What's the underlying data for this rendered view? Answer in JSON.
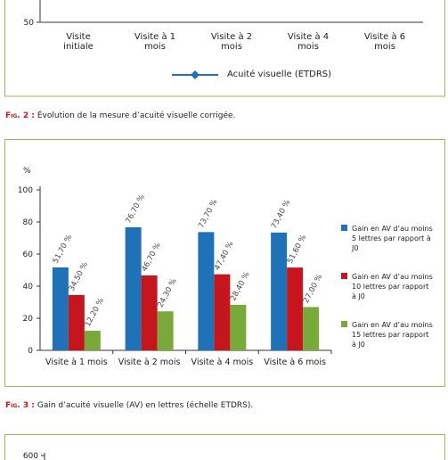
{
  "chart_data": [
    {
      "type": "line",
      "categories": [
        "Visite initiale",
        "Visite à 1 mois",
        "Visite à 2 mois",
        "Visite à 4 mois",
        "Visite à 6 mois"
      ],
      "yticks": [
        50
      ],
      "series": [
        {
          "name": "Acuité visuelle (ETDRS)",
          "color": "#1f72b8"
        }
      ]
    },
    {
      "type": "bar",
      "ylabel": "%",
      "categories": [
        "Visite à 1 mois",
        "Visite à 2 mois",
        "Visite à 4 mois",
        "Visite à 6 mois"
      ],
      "ylim": [
        0,
        100
      ],
      "yticks": [
        0,
        20,
        40,
        60,
        80,
        100
      ],
      "series": [
        {
          "name": "Gain en AV d’au moins 5 lettres par rapport à J0",
          "color": "#1f72b8",
          "values": [
            51.7,
            76.7,
            73.7,
            73.4
          ],
          "value_labels": [
            "51,70 %",
            "76,70 %",
            "73,70 %",
            "73,40 %"
          ]
        },
        {
          "name": "Gain en AV d’au moins 10 lettres par rapport à J0",
          "color": "#c5161d",
          "values": [
            34.5,
            46.7,
            47.4,
            51.6
          ],
          "value_labels": [
            "34,50 %",
            "46,70 %",
            "47,40 %",
            "51,60 %"
          ]
        },
        {
          "name": "Gain en AV d’au moins 15 lettres par rapport à J0",
          "color": "#79a938",
          "values": [
            12.2,
            24.3,
            28.4,
            27.0
          ],
          "value_labels": [
            "12,20 %",
            "24,30 %",
            "28,40 %",
            "27,00 %"
          ]
        }
      ]
    },
    {
      "type": "bar",
      "yticks": [
        600
      ]
    }
  ],
  "captions": [
    {
      "label": "Fig. 2 :",
      "text": "Évolution de la mesure d’acuité visuelle corrigée."
    },
    {
      "label": "Fig. 3 :",
      "text": "Gain d’acuité visuelle (AV) en lettres (échelle ETDRS)."
    }
  ]
}
